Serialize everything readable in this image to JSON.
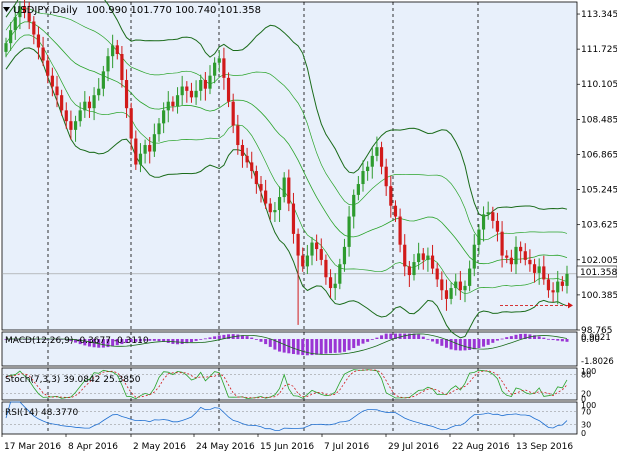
{
  "header": {
    "symbol": "USDJPY,Daily",
    "ohlc": "100.990 101.770 100.740 101.358"
  },
  "colors": {
    "background": "#e8f0fb",
    "bull": "#2e9b2e",
    "bear": "#d11a1a",
    "band": "#1a6b1a",
    "ma": "#29a329",
    "hist": "#9a35d4",
    "grid": "#000000",
    "axis_text": "#000000"
  },
  "price_axis": {
    "ticks": [
      "113.345",
      "111.725",
      "110.105",
      "108.485",
      "106.865",
      "105.245",
      "103.625",
      "102.005",
      "100.385",
      "98.765"
    ],
    "current": "101.358"
  },
  "macd": {
    "label": "MACD(12,26,9) -0.3677 -0.3110",
    "ticks": [
      "0.9021",
      "0.00",
      "-1.8026"
    ]
  },
  "stoch": {
    "label": "Stoch(7,3,3) 39.0842 25.3850",
    "ticks": [
      "100",
      "80",
      "20",
      "0"
    ]
  },
  "rsi": {
    "label": "RSI(14) 48.3770",
    "ticks": [
      "100",
      "70",
      "30",
      "0"
    ]
  },
  "date_axis": {
    "labels": [
      "17 Mar 2016",
      "8 Apr 2016",
      "2 May 2016",
      "24 May 2016",
      "15 Jun 2016",
      "7 Jul 2016",
      "29 Jul 2016",
      "22 Aug 2016",
      "13 Sep 2016"
    ]
  },
  "chart_data": {
    "type": "candlestick",
    "symbol": "USDJPY",
    "timeframe": "Daily",
    "ylim": [
      98.765,
      113.9
    ],
    "closes": [
      112.0,
      112.6,
      113.2,
      113.7,
      113.4,
      113.0,
      112.4,
      111.8,
      111.2,
      110.5,
      110.0,
      109.6,
      108.9,
      108.4,
      108.0,
      108.4,
      108.9,
      109.3,
      109.0,
      109.6,
      109.9,
      110.7,
      111.4,
      111.9,
      111.5,
      110.3,
      109.0,
      107.6,
      106.4,
      106.9,
      107.3,
      107.0,
      107.8,
      108.3,
      108.9,
      109.3,
      109.1,
      109.6,
      110.0,
      109.8,
      109.5,
      109.8,
      110.3,
      109.9,
      110.5,
      111.1,
      111.3,
      110.4,
      109.3,
      108.2,
      107.3,
      106.8,
      106.5,
      106.1,
      105.5,
      105.2,
      104.6,
      104.2,
      104.3,
      104.9,
      105.8,
      104.6,
      103.2,
      102.2,
      101.7,
      102.2,
      102.8,
      102.5,
      102.0,
      101.2,
      100.7,
      100.9,
      101.8,
      102.6,
      104.0,
      105.0,
      105.5,
      106.1,
      106.3,
      106.8,
      107.2,
      106.3,
      105.4,
      104.5,
      104.0,
      102.7,
      101.7,
      101.3,
      101.9,
      102.3,
      102.0,
      102.2,
      101.6,
      101.1,
      100.6,
      100.2,
      100.7,
      101.0,
      100.6,
      100.8,
      101.6,
      102.7,
      103.4,
      104.1,
      104.2,
      103.8,
      103.3,
      102.2,
      102.1,
      101.8,
      102.6,
      102.4,
      102.0,
      101.8,
      101.4,
      101.7,
      101.1,
      100.6,
      100.5,
      101.0,
      100.8,
      101.358
    ]
  }
}
